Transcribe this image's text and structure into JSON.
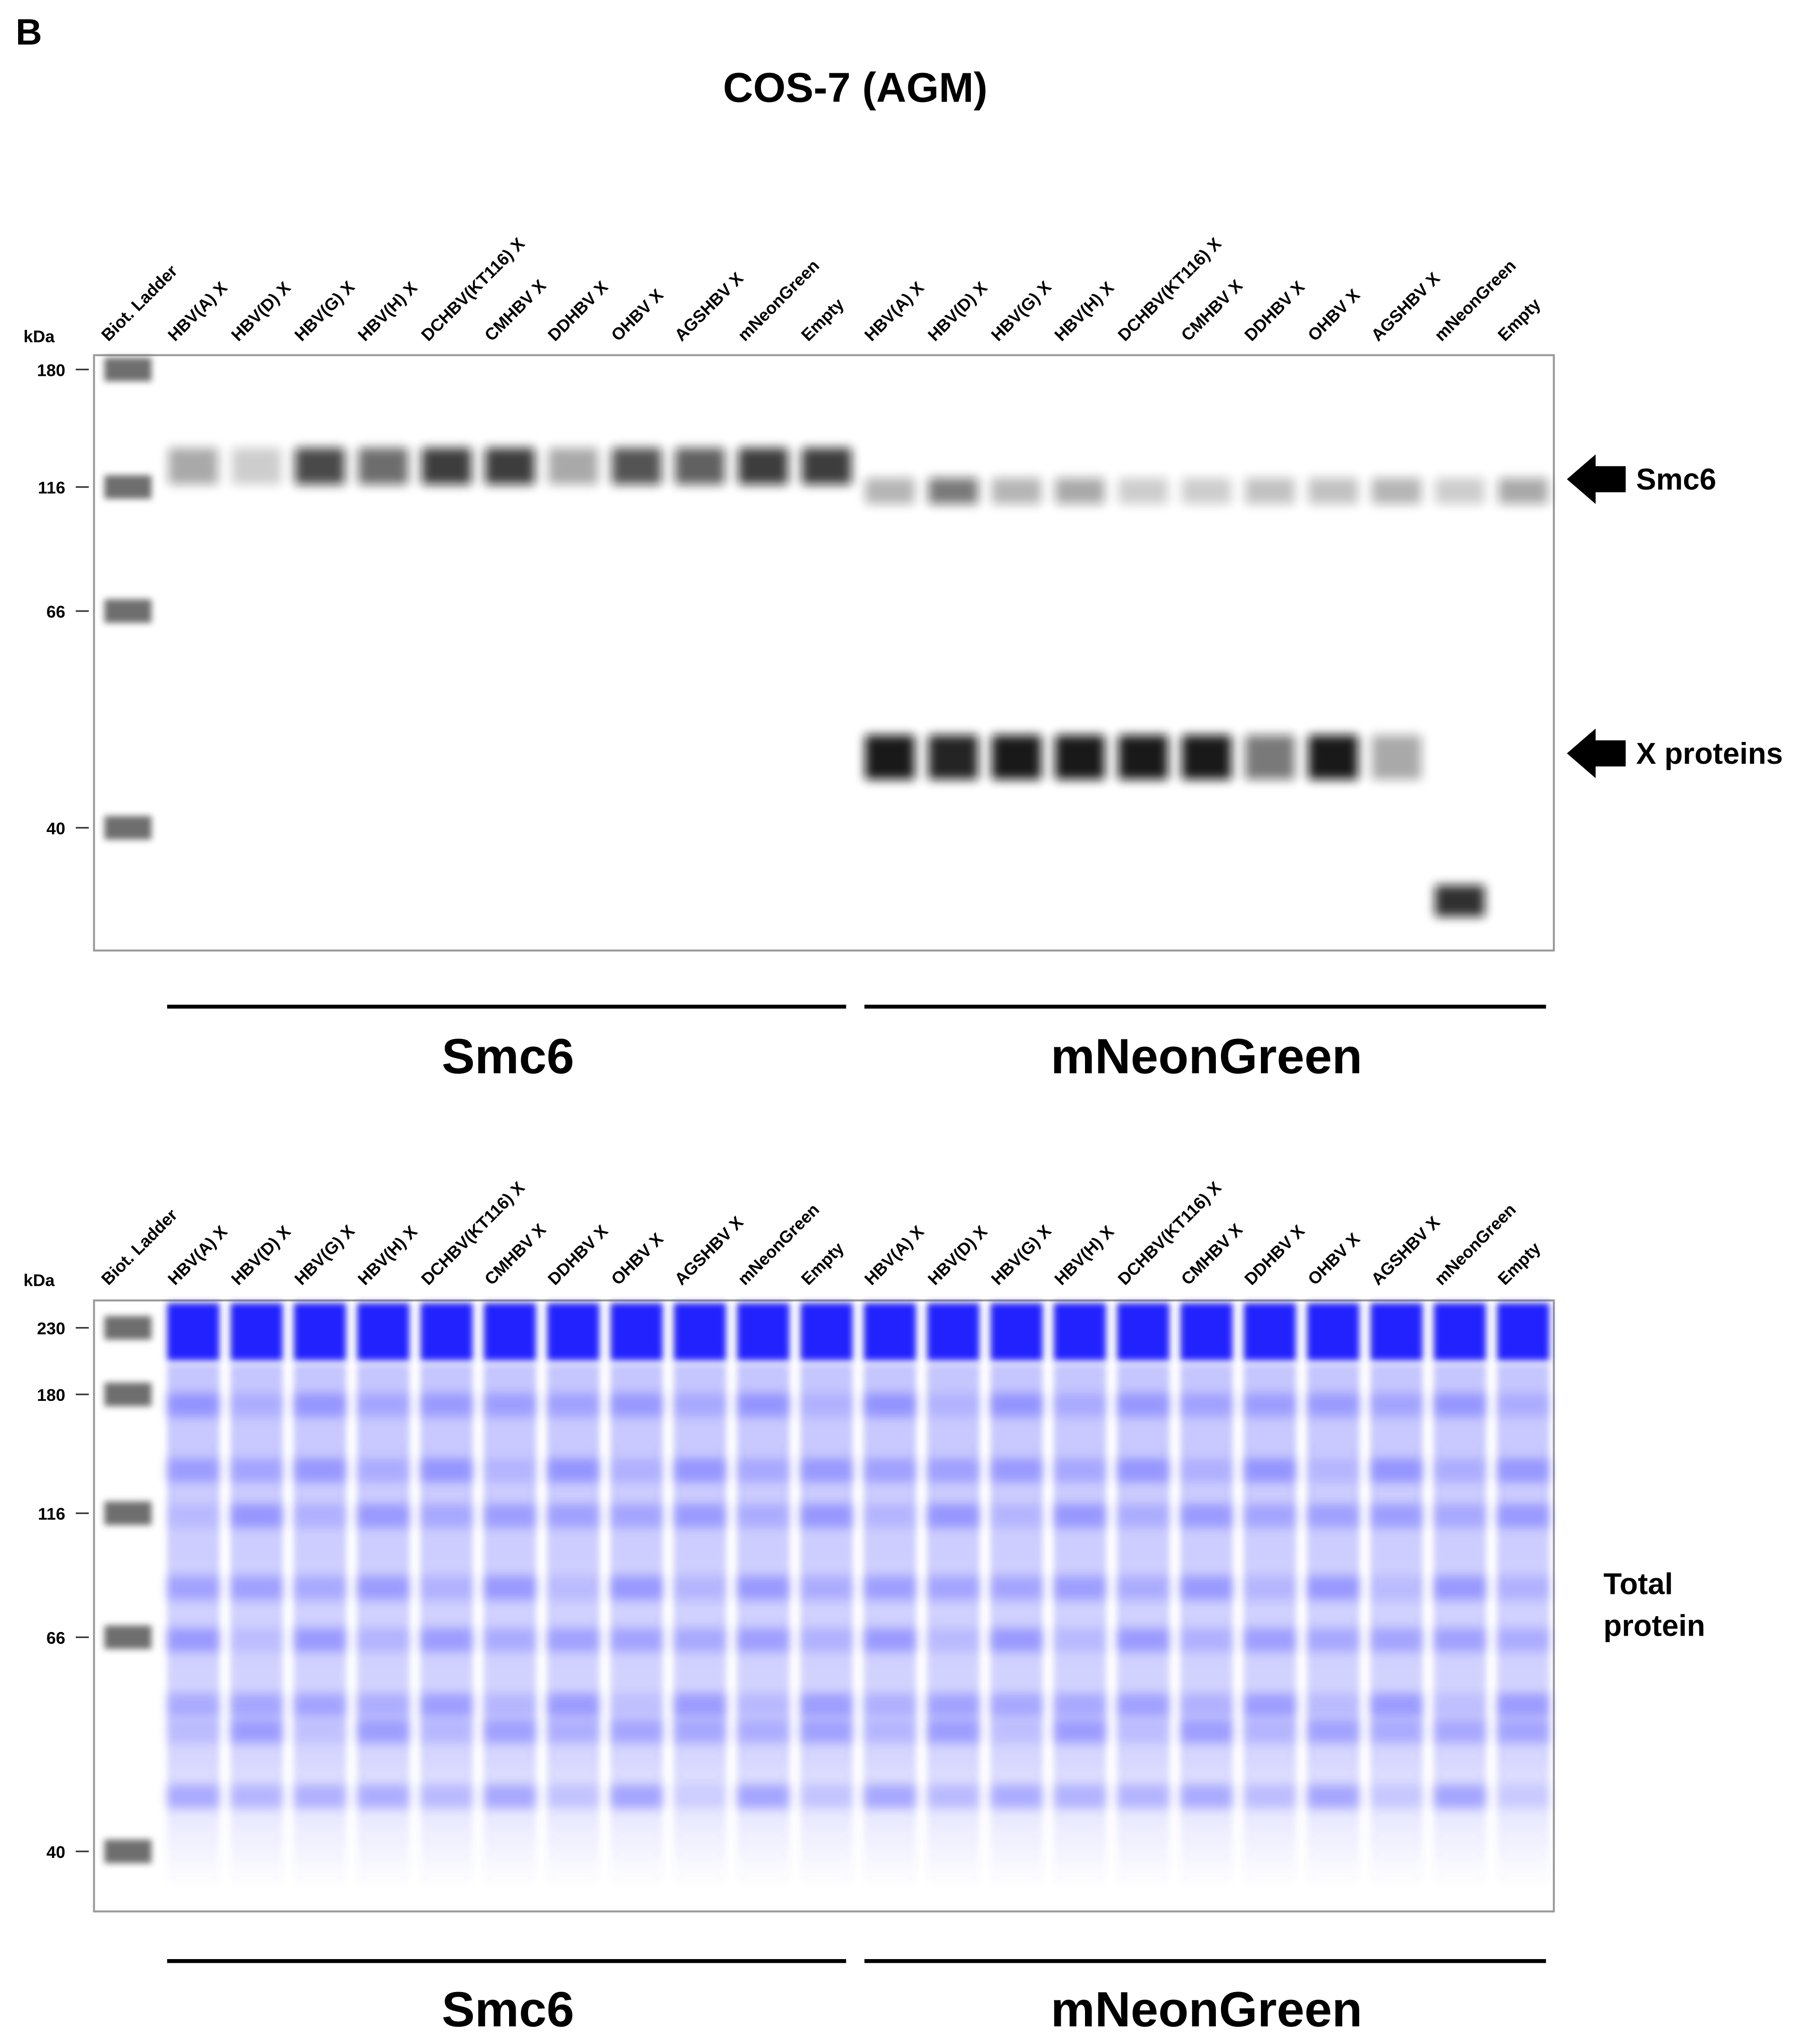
{
  "panel_label": "B",
  "title": "COS-7 (AGM)",
  "blots": [
    {
      "unit": "kDa",
      "markers": [
        180,
        116,
        66,
        40
      ],
      "lanes": [
        "Biot. Ladder",
        "HBV(A) X",
        "HBV(D) X",
        "HBV(G) X",
        "HBV(H) X",
        "DCHBV(KT116) X",
        "CMHBV X",
        "DDHBV X",
        "OHBV X",
        "AGSHBV X",
        "mNeonGreen",
        "Empty",
        "HBV(A) X",
        "HBV(D) X",
        "HBV(G) X",
        "HBV(H) X",
        "DCHBV(KT116) X",
        "CMHBV X",
        "DDHBV X",
        "OHBV X",
        "AGSHBV X",
        "mNeonGreen",
        "Empty"
      ],
      "groups": [
        "Smc6",
        "mNeonGreen"
      ],
      "annotations": [
        "Smc6",
        "X proteins"
      ]
    },
    {
      "unit": "kDa",
      "markers": [
        230,
        180,
        116,
        66,
        40
      ],
      "lanes": [
        "Biot. Ladder",
        "HBV(A) X",
        "HBV(D) X",
        "HBV(G) X",
        "HBV(H) X",
        "DCHBV(KT116) X",
        "CMHBV X",
        "DDHBV X",
        "OHBV X",
        "AGSHBV X",
        "mNeonGreen",
        "Empty",
        "HBV(A) X",
        "HBV(D) X",
        "HBV(G) X",
        "HBV(H) X",
        "DCHBV(KT116) X",
        "CMHBV X",
        "DDHBV X",
        "OHBV X",
        "AGSHBV X",
        "mNeonGreen",
        "Empty"
      ],
      "groups": [
        "Smc6",
        "mNeonGreen"
      ],
      "annotations": [
        "Total",
        "protein"
      ]
    }
  ]
}
